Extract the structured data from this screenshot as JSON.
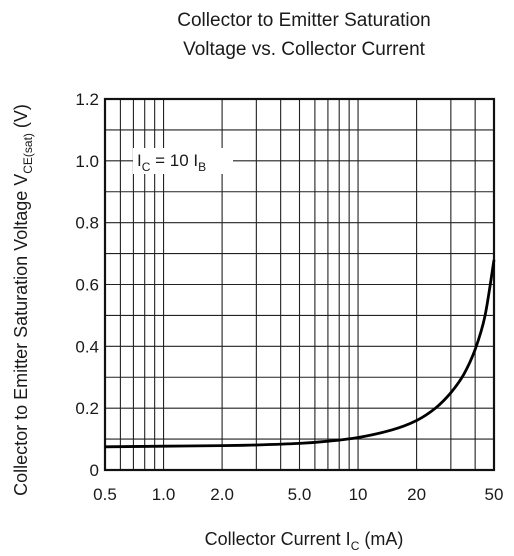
{
  "chart_data": {
    "type": "line",
    "title_line1": "Collector to Emitter Saturation",
    "title_line2": "Voltage vs. Collector Current",
    "xlabel": {
      "text": "Collector Current  I",
      "sub": "C",
      "unit": "(mA)"
    },
    "ylabel": {
      "text": "Collector to Emitter Saturation Voltage  V",
      "sub": "CE(sat)",
      "unit": "(V)"
    },
    "x_scale": "log",
    "xlim": [
      0.5,
      50
    ],
    "ylim": [
      0,
      1.2
    ],
    "x_ticks": [
      0.5,
      1.0,
      2.0,
      5.0,
      10,
      20,
      50
    ],
    "x_tick_labels": [
      "0.5",
      "1.0",
      "2.0",
      "5.0",
      "10",
      "20",
      "50"
    ],
    "y_ticks": [
      0,
      0.2,
      0.4,
      0.6,
      0.8,
      1.0,
      1.2
    ],
    "y_tick_labels": [
      "0",
      "0.2",
      "0.4",
      "0.6",
      "0.8",
      "1.0",
      "1.2"
    ],
    "grid": true,
    "annotation": {
      "prefix": "I",
      "prefix_sub": "C",
      "middle": " = 10 I",
      "suffix_sub": "B"
    },
    "series": [
      {
        "color": "#000000",
        "x": [
          0.5,
          1.0,
          2.0,
          3.0,
          5.0,
          7.0,
          10,
          15,
          20,
          25,
          30,
          35,
          40,
          45,
          50
        ],
        "y": [
          0.075,
          0.077,
          0.079,
          0.081,
          0.086,
          0.093,
          0.105,
          0.13,
          0.16,
          0.2,
          0.25,
          0.31,
          0.39,
          0.5,
          0.68
        ]
      }
    ]
  }
}
